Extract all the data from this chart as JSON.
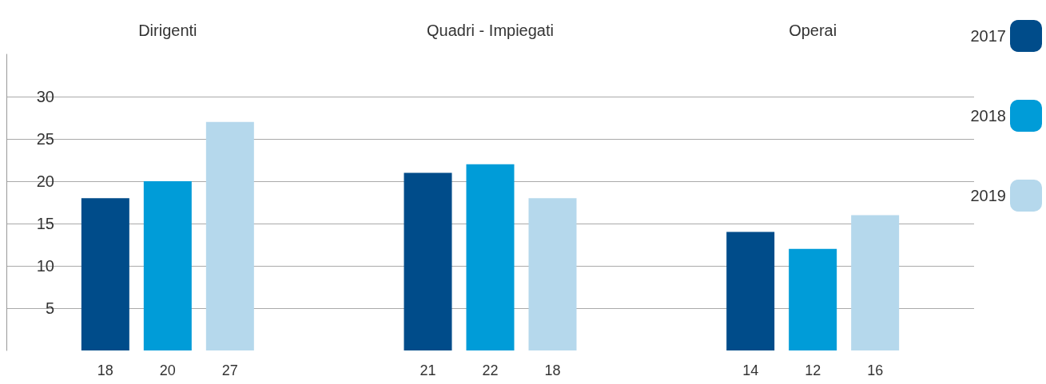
{
  "chart_data": {
    "type": "bar",
    "categories": [
      "Dirigenti",
      "Quadri - Impiegati",
      "Operai"
    ],
    "series": [
      {
        "name": "2017",
        "color": "#004c8a",
        "values": [
          18,
          21,
          14
        ]
      },
      {
        "name": "2018",
        "color": "#009cd8",
        "values": [
          20,
          22,
          12
        ]
      },
      {
        "name": "2019",
        "color": "#b5d8ec",
        "values": [
          27,
          18,
          16
        ]
      }
    ],
    "ylim": [
      0,
      35
    ],
    "yticks": [
      5,
      10,
      15,
      20,
      25,
      30
    ],
    "grid": "y",
    "legend": "right",
    "data_labels": true
  }
}
